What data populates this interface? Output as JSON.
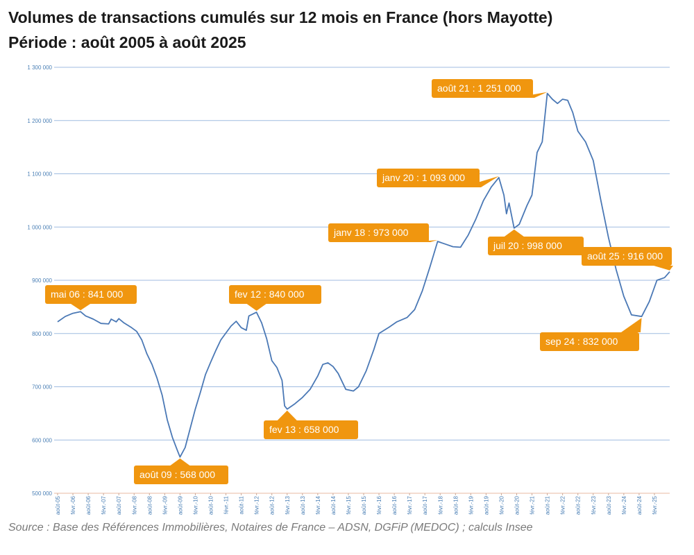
{
  "chart_data": {
    "type": "line",
    "title": "Volumes de transactions cumulés sur 12 mois en France (hors Mayotte)",
    "subtitle": "Période : août 2005 à août 2025",
    "source": "Source : Base des Références Immobilières, Notaires de France – ADSN, DGFiP (MEDOC) ; calculs Insee",
    "xlabel": "",
    "ylabel": "",
    "ylim": [
      500000,
      1300000
    ],
    "xlim": [
      "2005-08",
      "2025-08"
    ],
    "grid": true,
    "line_color": "#4a78b5",
    "annotation_color": "#f0960f",
    "y_ticks": [
      "500 000",
      "600 000",
      "700 000",
      "800 000",
      "900 000",
      "1 000 000",
      "1 100 000",
      "1 200 000",
      "1 300 000"
    ],
    "x_ticks": [
      "août-05",
      "févr.-06",
      "août-06",
      "févr.-07",
      "août-07",
      "févr.-08",
      "août-08",
      "févr.-09",
      "août-09",
      "févr.-10",
      "août-10",
      "févr.-11",
      "août-11",
      "févr.-12",
      "août-12",
      "févr.-13",
      "août-13",
      "févr.-14",
      "août-14",
      "févr.-15",
      "août-15",
      "févr.-16",
      "août-16",
      "févr.-17",
      "août-17",
      "févr.-18",
      "août-18",
      "févr.-19",
      "août-19",
      "févr.-20",
      "août-20",
      "févr.-21",
      "août-21",
      "févr.-22",
      "août-22",
      "févr.-23",
      "août-23",
      "févr.-24",
      "août-24",
      "févr.-25"
    ],
    "points": [
      [
        "2005-08",
        822000
      ],
      [
        "2005-11",
        832000
      ],
      [
        "2006-02",
        838000
      ],
      [
        "2006-05",
        841000
      ],
      [
        "2006-07",
        833000
      ],
      [
        "2006-10",
        827000
      ],
      [
        "2007-01",
        819000
      ],
      [
        "2007-04",
        818000
      ],
      [
        "2007-05",
        827000
      ],
      [
        "2007-07",
        822000
      ],
      [
        "2007-08",
        828000
      ],
      [
        "2007-10",
        820000
      ],
      [
        "2008-01",
        811000
      ],
      [
        "2008-03",
        804000
      ],
      [
        "2008-05",
        788000
      ],
      [
        "2008-07",
        762000
      ],
      [
        "2008-09",
        742000
      ],
      [
        "2008-11",
        716000
      ],
      [
        "2009-01",
        684000
      ],
      [
        "2009-03",
        638000
      ],
      [
        "2009-05",
        605000
      ],
      [
        "2009-07",
        580000
      ],
      [
        "2009-08",
        568000
      ],
      [
        "2009-10",
        586000
      ],
      [
        "2009-12",
        622000
      ],
      [
        "2010-02",
        658000
      ],
      [
        "2010-04",
        690000
      ],
      [
        "2010-06",
        723000
      ],
      [
        "2010-08",
        746000
      ],
      [
        "2010-10",
        768000
      ],
      [
        "2010-12",
        788000
      ],
      [
        "2011-02",
        801000
      ],
      [
        "2011-04",
        814000
      ],
      [
        "2011-06",
        823000
      ],
      [
        "2011-08",
        811000
      ],
      [
        "2011-10",
        806000
      ],
      [
        "2011-11",
        833000
      ],
      [
        "2012-02",
        840000
      ],
      [
        "2012-04",
        820000
      ],
      [
        "2012-06",
        790000
      ],
      [
        "2012-08",
        749000
      ],
      [
        "2012-10",
        736000
      ],
      [
        "2012-12",
        712000
      ],
      [
        "2013-01",
        664000
      ],
      [
        "2013-02",
        658000
      ],
      [
        "2013-05",
        668000
      ],
      [
        "2013-08",
        680000
      ],
      [
        "2013-11",
        695000
      ],
      [
        "2014-02",
        720000
      ],
      [
        "2014-04",
        742000
      ],
      [
        "2014-06",
        745000
      ],
      [
        "2014-08",
        738000
      ],
      [
        "2014-10",
        725000
      ],
      [
        "2015-01",
        695000
      ],
      [
        "2015-04",
        692000
      ],
      [
        "2015-06",
        700000
      ],
      [
        "2015-09",
        730000
      ],
      [
        "2015-12",
        770000
      ],
      [
        "2016-02",
        800000
      ],
      [
        "2016-06",
        812000
      ],
      [
        "2016-09",
        822000
      ],
      [
        "2017-01",
        830000
      ],
      [
        "2017-04",
        845000
      ],
      [
        "2017-07",
        880000
      ],
      [
        "2017-10",
        925000
      ],
      [
        "2018-01",
        973000
      ],
      [
        "2018-04",
        968000
      ],
      [
        "2018-07",
        963000
      ],
      [
        "2018-10",
        962000
      ],
      [
        "2019-01",
        985000
      ],
      [
        "2019-04",
        1015000
      ],
      [
        "2019-07",
        1050000
      ],
      [
        "2019-10",
        1075000
      ],
      [
        "2020-01",
        1093000
      ],
      [
        "2020-03",
        1060000
      ],
      [
        "2020-04",
        1025000
      ],
      [
        "2020-05",
        1045000
      ],
      [
        "2020-07",
        998000
      ],
      [
        "2020-09",
        1005000
      ],
      [
        "2020-12",
        1040000
      ],
      [
        "2021-02",
        1060000
      ],
      [
        "2021-04",
        1140000
      ],
      [
        "2021-06",
        1160000
      ],
      [
        "2021-08",
        1251000
      ],
      [
        "2021-10",
        1240000
      ],
      [
        "2021-12",
        1232000
      ],
      [
        "2022-02",
        1240000
      ],
      [
        "2022-04",
        1238000
      ],
      [
        "2022-06",
        1215000
      ],
      [
        "2022-08",
        1180000
      ],
      [
        "2022-11",
        1160000
      ],
      [
        "2023-02",
        1125000
      ],
      [
        "2023-05",
        1050000
      ],
      [
        "2023-08",
        980000
      ],
      [
        "2023-11",
        920000
      ],
      [
        "2024-02",
        870000
      ],
      [
        "2024-05",
        835000
      ],
      [
        "2024-09",
        832000
      ],
      [
        "2024-12",
        860000
      ],
      [
        "2025-03",
        900000
      ],
      [
        "2025-06",
        905000
      ],
      [
        "2025-08",
        916000
      ]
    ],
    "annotations": [
      {
        "label": "mai 06 : 841 000",
        "date": "2006-05",
        "value": 841000
      },
      {
        "label": "août 09 : 568 000",
        "date": "2009-08",
        "value": 568000
      },
      {
        "label": "fev 12 : 840 000",
        "date": "2012-02",
        "value": 840000
      },
      {
        "label": "fev 13 : 658 000",
        "date": "2013-02",
        "value": 658000
      },
      {
        "label": "janv  18 : 973 000",
        "date": "2018-01",
        "value": 973000
      },
      {
        "label": "janv 20 : 1 093 000",
        "date": "2020-01",
        "value": 1093000
      },
      {
        "label": "juil 20 : 998 000",
        "date": "2020-07",
        "value": 998000
      },
      {
        "label": "août 21 : 1 251 000",
        "date": "2021-08",
        "value": 1251000
      },
      {
        "label": "août 25 : 916 000",
        "date": "2025-08",
        "value": 916000
      },
      {
        "label": "sep 24 : 832 000",
        "date": "2024-09",
        "value": 832000
      }
    ]
  }
}
